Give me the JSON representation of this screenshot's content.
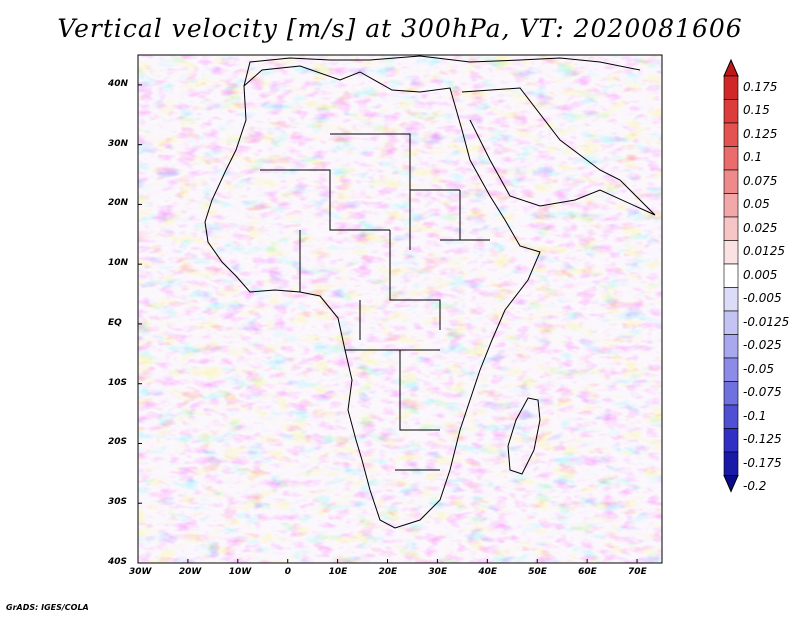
{
  "title": "Vertical velocity [m/s] at 300hPa, VT: 2020081606",
  "credit": "GrADS: IGES/COLA",
  "lat_labels": [
    "40N",
    "30N",
    "20N",
    "10N",
    "EQ",
    "10S",
    "20S",
    "30S",
    "40S"
  ],
  "lat_values": [
    40,
    30,
    20,
    10,
    0,
    -10,
    -20,
    -30,
    -40
  ],
  "lon_labels": [
    "30W",
    "20W",
    "10W",
    "0",
    "10E",
    "20E",
    "30E",
    "40E",
    "50E",
    "60E",
    "70E"
  ],
  "lon_values": [
    -30,
    -20,
    -10,
    0,
    10,
    20,
    30,
    40,
    50,
    60,
    70
  ],
  "map_extent": {
    "lon_min": -30,
    "lon_max": 75,
    "lat_min": -40,
    "lat_max": 45
  },
  "colorbar": {
    "labels": [
      "0.175",
      "0.15",
      "0.125",
      "0.1",
      "0.075",
      "0.05",
      "0.025",
      "0.0125",
      "0.005",
      "-0.005",
      "-0.0125",
      "-0.025",
      "-0.05",
      "-0.075",
      "-0.1",
      "-0.125",
      "-0.175",
      "-0.2"
    ],
    "colors": [
      "#c01818",
      "#d02828",
      "#dc3c3c",
      "#e45252",
      "#ea6c6c",
      "#ee8a8a",
      "#f2a8a8",
      "#f6c6c6",
      "#fae2e2",
      "#ffffff",
      "#dcdcf8",
      "#c4c4f4",
      "#a8a8ee",
      "#8c8ce8",
      "#7070e0",
      "#5050d4",
      "#3030c4",
      "#1a1aa8",
      "#0a0a8c"
    ]
  }
}
